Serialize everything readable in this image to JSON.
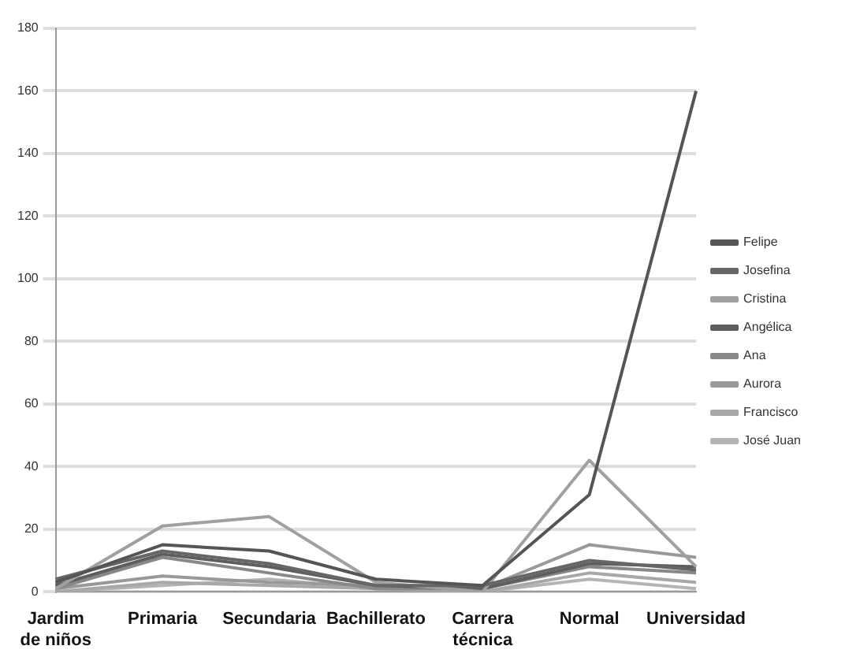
{
  "chart_data": {
    "type": "line",
    "categories": [
      "Jardim de niños",
      "Primaria",
      "Secundaria",
      "Bachillerato",
      "Carrera técnica",
      "Normal",
      "Universidad"
    ],
    "series": [
      {
        "name": "Felipe",
        "color": "#555555",
        "values": [
          3,
          15,
          13,
          4,
          2,
          31,
          160
        ]
      },
      {
        "name": "Josefina",
        "color": "#666666",
        "values": [
          4,
          13,
          9,
          2,
          2,
          10,
          7
        ]
      },
      {
        "name": "Cristina",
        "color": "#a0a0a0",
        "values": [
          1,
          21,
          24,
          3,
          0,
          42,
          8
        ]
      },
      {
        "name": "Angélica",
        "color": "#5e5e5e",
        "values": [
          2,
          12,
          8,
          2,
          1,
          9,
          8
        ]
      },
      {
        "name": "Ana",
        "color": "#888888",
        "values": [
          1,
          11,
          6,
          1,
          1,
          8,
          6
        ]
      },
      {
        "name": "Aurora",
        "color": "#999999",
        "values": [
          1,
          5,
          3,
          2,
          1,
          15,
          11
        ]
      },
      {
        "name": "Francisco",
        "color": "#a8a8a8",
        "values": [
          0,
          3,
          2,
          1,
          0,
          6,
          3
        ]
      },
      {
        "name": "José Juan",
        "color": "#b4b4b4",
        "values": [
          0,
          2,
          4,
          1,
          0,
          4,
          1
        ]
      }
    ],
    "ylim": [
      0,
      180
    ],
    "yticks": [
      0,
      20,
      40,
      60,
      80,
      100,
      120,
      140,
      160,
      180
    ],
    "grid": "y",
    "legend": "right",
    "marker": "none",
    "line_style": "solid"
  }
}
